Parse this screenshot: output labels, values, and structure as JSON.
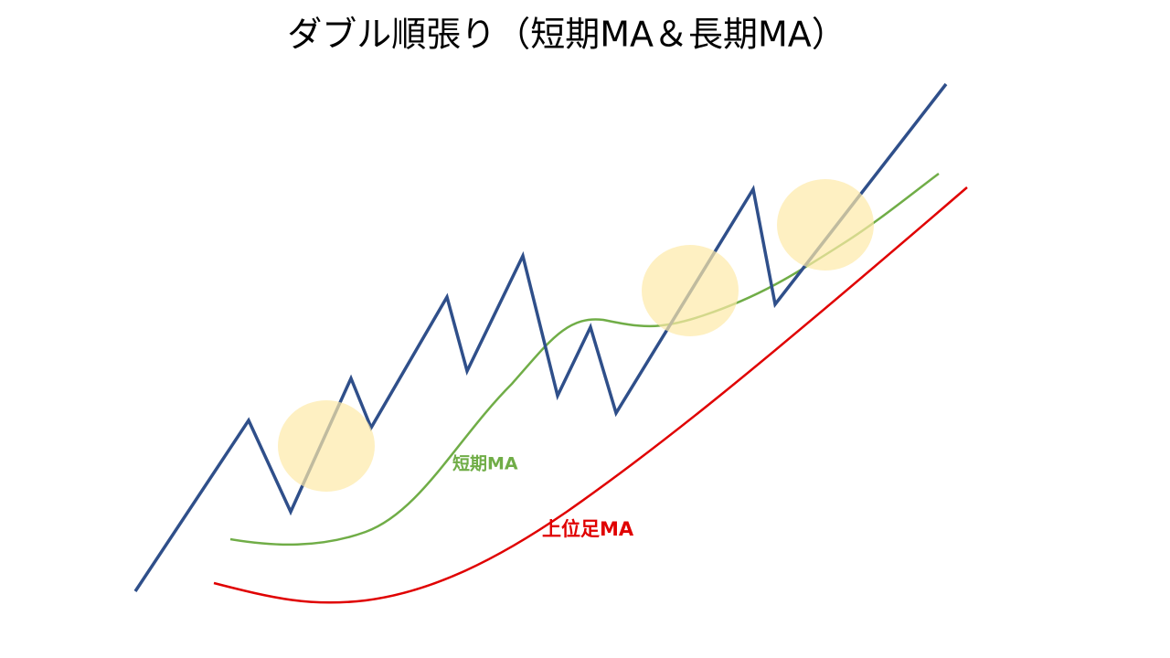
{
  "title": "ダブル順張り（短期MA＆長期MA）",
  "labels": {
    "short_ma": "短期MA",
    "higher_ma": "上位足MA"
  }
}
